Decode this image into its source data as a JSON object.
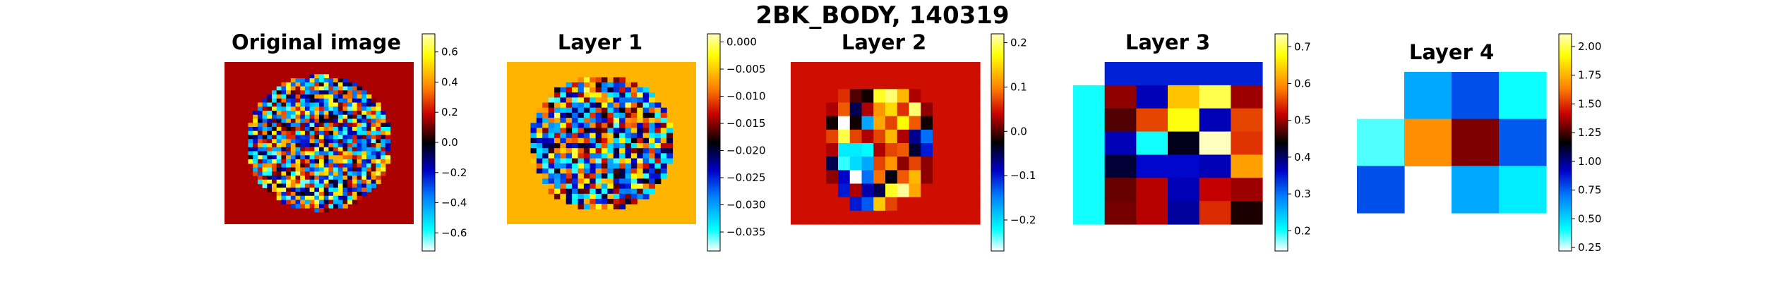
{
  "figure_title": "2BK_BODY, 140319",
  "chart_data": [
    {
      "type": "heatmap",
      "title": "Original image",
      "colorbar": {
        "min": -0.72,
        "max": 0.72,
        "ticks": [
          -0.6,
          -0.4,
          -0.2,
          0.0,
          0.2,
          0.4,
          0.6
        ],
        "tick_labels": [
          "−0.6",
          "−0.4",
          "−0.2",
          "0.0",
          "0.2",
          "0.4",
          "0.6"
        ]
      },
      "background_value": 0.16,
      "grid_size": 40,
      "mask": "circle",
      "note_values": "dense mixed positive/negative voxels inside circular brain slice"
    },
    {
      "type": "heatmap",
      "title": "Layer 1",
      "colorbar": {
        "min": -0.0385,
        "max": 0.0015,
        "ticks": [
          -0.035,
          -0.03,
          -0.025,
          -0.02,
          -0.015,
          -0.01,
          -0.005,
          0.0
        ],
        "tick_labels": [
          "−0.035",
          "−0.030",
          "−0.025",
          "−0.020",
          "−0.015",
          "−0.010",
          "−0.005",
          "0.000"
        ]
      },
      "background_value": -0.006,
      "grid_size": 32,
      "mask": "circle"
    },
    {
      "type": "heatmap",
      "title": "Layer 2",
      "colorbar": {
        "min": -0.27,
        "max": 0.22,
        "ticks": [
          -0.2,
          -0.1,
          0.0,
          0.1,
          0.2
        ],
        "tick_labels": [
          "−0.2",
          "−0.1",
          "0.0",
          "0.1",
          "0.2"
        ]
      },
      "background_value": 0.045,
      "rows": [
        [
          0.045,
          0.045,
          0.045,
          0.045,
          0.045,
          0.045,
          0.045,
          0.045,
          0.045,
          0.045,
          0.045,
          0.045,
          0.045,
          0.045,
          0.045,
          0.045
        ],
        [
          0.045,
          0.045,
          0.045,
          0.045,
          0.045,
          0.045,
          0.045,
          0.045,
          0.045,
          0.045,
          0.045,
          0.045,
          0.045,
          0.045,
          0.045,
          0.045
        ],
        [
          0.045,
          0.045,
          0.045,
          0.045,
          0.06,
          0.0,
          -0.02,
          0.18,
          0.2,
          0.13,
          0.03,
          0.045,
          0.045,
          0.045,
          0.045,
          0.045
        ],
        [
          0.045,
          0.045,
          0.045,
          0.03,
          0.08,
          -0.05,
          0.03,
          0.11,
          0.15,
          0.06,
          0.2,
          0.02,
          0.045,
          0.045,
          0.045,
          0.045
        ],
        [
          0.045,
          0.045,
          0.045,
          -0.02,
          -0.27,
          -0.02,
          -0.17,
          0.12,
          0.07,
          0.17,
          0.08,
          -0.02,
          0.045,
          0.045,
          0.045,
          0.045
        ],
        [
          0.045,
          0.045,
          0.045,
          0.07,
          0.19,
          0.07,
          0.03,
          0.07,
          0.13,
          0.03,
          -0.07,
          -0.14,
          0.045,
          0.045,
          0.045,
          0.045
        ],
        [
          0.045,
          0.045,
          0.045,
          0.03,
          -0.21,
          -0.21,
          -0.22,
          0.03,
          0.07,
          0.08,
          -0.04,
          -0.1,
          0.045,
          0.045,
          0.045,
          0.045
        ],
        [
          0.045,
          0.045,
          0.045,
          -0.05,
          -0.23,
          -0.2,
          -0.17,
          0.07,
          0.11,
          0.02,
          0.07,
          0.02,
          0.045,
          0.045,
          0.045,
          0.045
        ],
        [
          0.045,
          0.045,
          0.045,
          0.02,
          -0.09,
          -0.27,
          -0.14,
          0.09,
          -0.03,
          0.08,
          0.13,
          0.02,
          0.045,
          0.045,
          0.045,
          0.045
        ],
        [
          0.045,
          0.045,
          0.045,
          0.045,
          -0.1,
          0.03,
          -0.08,
          -0.05,
          0.18,
          0.21,
          0.12,
          0.045,
          0.045,
          0.045,
          0.045,
          0.045
        ],
        [
          0.045,
          0.045,
          0.045,
          0.045,
          0.045,
          -0.1,
          -0.13,
          0.14,
          0.07,
          0.045,
          0.045,
          0.045,
          0.045,
          0.045,
          0.045,
          0.045
        ],
        [
          0.045,
          0.045,
          0.045,
          0.045,
          0.045,
          0.045,
          0.045,
          0.045,
          0.045,
          0.045,
          0.045,
          0.045,
          0.045,
          0.045,
          0.045,
          0.045
        ]
      ]
    },
    {
      "type": "heatmap",
      "title": "Layer 3",
      "colorbar": {
        "min": 0.145,
        "max": 0.735,
        "ticks": [
          0.2,
          0.3,
          0.4,
          0.5,
          0.6,
          0.7
        ],
        "tick_labels": [
          "0.2",
          "0.3",
          "0.4",
          "0.5",
          "0.6",
          "0.7"
        ]
      },
      "rows": [
        [
          null,
          0.345,
          0.345,
          0.345,
          0.345,
          0.345
        ],
        [
          0.2,
          0.495,
          0.37,
          0.635,
          0.7,
          0.5
        ],
        [
          0.2,
          0.47,
          0.555,
          0.68,
          0.37,
          0.555
        ],
        [
          0.2,
          0.37,
          0.2,
          0.43,
          0.735,
          0.545
        ],
        [
          0.2,
          0.42,
          0.36,
          0.36,
          0.37,
          0.61
        ],
        [
          0.2,
          0.48,
          0.51,
          0.37,
          0.515,
          0.5
        ],
        [
          0.2,
          0.485,
          0.51,
          0.38,
          0.54,
          0.45
        ]
      ]
    },
    {
      "type": "heatmap",
      "title": "Layer 4",
      "colorbar": {
        "min": 0.22,
        "max": 2.11,
        "ticks": [
          0.25,
          0.5,
          0.75,
          1.0,
          1.25,
          1.5,
          1.75,
          2.0
        ],
        "tick_labels": [
          "0.25",
          "0.50",
          "0.75",
          "1.00",
          "1.25",
          "1.50",
          "1.75",
          "2.00"
        ]
      },
      "rows": [
        [
          null,
          0.6,
          0.78,
          0.4
        ],
        [
          0.35,
          1.67,
          1.32,
          0.76
        ],
        [
          0.78,
          null,
          0.6,
          0.45
        ]
      ]
    }
  ]
}
